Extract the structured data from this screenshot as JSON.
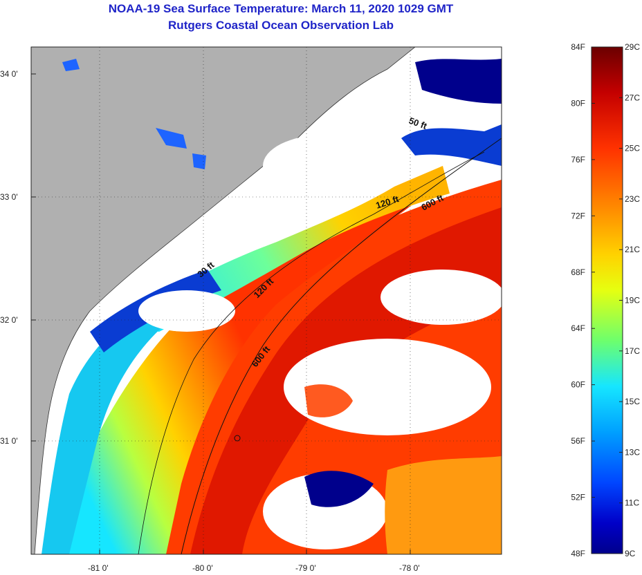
{
  "header": {
    "title": "NOAA-19 Sea Surface Temperature:  March 11, 2020 1029 GMT",
    "subtitle": "Rutgers Coastal Ocean Observation Lab"
  },
  "map": {
    "latitude_labels": [
      "34 0'",
      "33 0'",
      "32 0'",
      "31 0'"
    ],
    "longitude_labels": [
      "-81 0'",
      "-80 0'",
      "-79 0'",
      "-78 0'"
    ],
    "contour_labels": [
      "50 ft",
      "120 ft",
      "600 ft",
      "120 ft",
      "600 ft",
      "30 ft"
    ],
    "land_color": "#b0b0b0",
    "cloud_color": "#ffffff"
  },
  "colorbar": {
    "fahrenheit_labels": [
      "84F",
      "80F",
      "76F",
      "72F",
      "68F",
      "64F",
      "60F",
      "56F",
      "52F",
      "48F"
    ],
    "celsius_labels": [
      "29C",
      "27C",
      "25C",
      "23C",
      "21C",
      "19C",
      "17C",
      "15C",
      "13C",
      "11C",
      "9C"
    ],
    "colors": [
      "#6b0000",
      "#c40000",
      "#ff3200",
      "#ff8c00",
      "#ffd200",
      "#e6ff10",
      "#6dff6d",
      "#16e6ff",
      "#00a0ff",
      "#0046ff",
      "#0000c8",
      "#00008c"
    ]
  }
}
